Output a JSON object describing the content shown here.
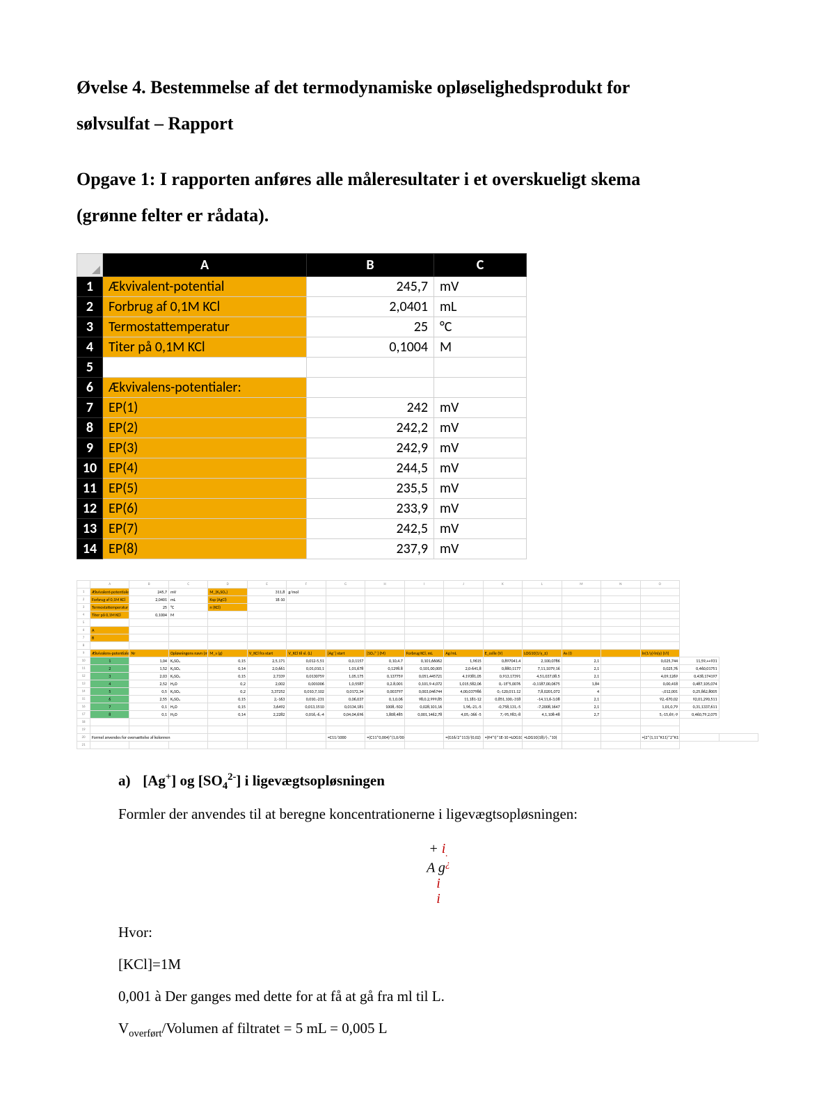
{
  "title_line1": "Øvelse 4. Bestemmelse af det termodynamiske opløselighedsprodukt for",
  "title_line2": "sølvsulfat – Rapport",
  "subtitle_line1": "Opgave 1: I rapporten anføres alle måleresultater i et overskueligt skema",
  "subtitle_line2": "(grønne felter er rådata).",
  "excel1": {
    "col_headers": [
      "A",
      "B",
      "C"
    ],
    "rows": [
      {
        "n": "1",
        "a": "Ækvivalent-potential",
        "b": "245,7",
        "c": "mV"
      },
      {
        "n": "2",
        "a": "Forbrug af 0,1M KCl",
        "b": "2,0401",
        "c": "mL"
      },
      {
        "n": "3",
        "a": "Termostattemperatur",
        "b": "25",
        "c": "°C"
      },
      {
        "n": "4",
        "a": "Titer på 0,1M KCl",
        "b": "0,1004",
        "c": "M"
      },
      {
        "n": "5",
        "a": "",
        "b": "",
        "c": ""
      },
      {
        "n": "6",
        "a": "Ækvivalens-potentialer:",
        "b": "",
        "c": ""
      },
      {
        "n": "7",
        "a": "EP(1)",
        "b": "242",
        "c": "mV"
      },
      {
        "n": "8",
        "a": "EP(2)",
        "b": "242,2",
        "c": "mV"
      },
      {
        "n": "9",
        "a": "EP(3)",
        "b": "242,9",
        "c": "mV"
      },
      {
        "n": "10",
        "a": "EP(4)",
        "b": "244,5",
        "c": "mV"
      },
      {
        "n": "11",
        "a": "EP(5)",
        "b": "235,5",
        "c": "mV"
      },
      {
        "n": "12",
        "a": "EP(6)",
        "b": "233,9",
        "c": "mV"
      },
      {
        "n": "13",
        "a": "EP(7)",
        "b": "242,5",
        "c": "mV"
      },
      {
        "n": "14",
        "a": "EP(8)",
        "b": "237,9",
        "c": "mV"
      }
    ],
    "colors": {
      "header_bg": "#000000",
      "header_fg": "#ffffff",
      "colA_bg": "#f2a900",
      "cell_border": "#cfcfcf"
    }
  },
  "excel2": {
    "col_letters": [
      "",
      "A",
      "B",
      "C",
      "D",
      "E",
      "F",
      "G",
      "H",
      "I",
      "J",
      "K",
      "L",
      "M",
      "N",
      "O"
    ],
    "top_block": [
      {
        "n": "1",
        "cells": [
          {
            "t": "Ækvivalent-potentiale",
            "cls": "orange txt"
          },
          {
            "t": "245,7",
            "cls": "num"
          },
          {
            "t": "mV",
            "cls": "txt"
          },
          {
            "t": "M_(K₂SO₄)",
            "cls": "orange txt"
          },
          {
            "t": "311,8",
            "cls": "num"
          },
          {
            "t": "g/mol",
            "cls": "txt"
          },
          {
            "t": "",
            "cls": ""
          },
          {
            "t": "",
            "cls": ""
          },
          {
            "t": "",
            "cls": ""
          },
          {
            "t": "",
            "cls": ""
          },
          {
            "t": "",
            "cls": ""
          },
          {
            "t": "",
            "cls": ""
          },
          {
            "t": "",
            "cls": ""
          },
          {
            "t": "",
            "cls": ""
          },
          {
            "t": "",
            "cls": ""
          }
        ]
      },
      {
        "n": "2",
        "cells": [
          {
            "t": "Forbrug af 0,1M KCl",
            "cls": "orange txt"
          },
          {
            "t": "2,0401",
            "cls": "num"
          },
          {
            "t": "mL",
            "cls": "txt"
          },
          {
            "t": "Ksp (AgCl)",
            "cls": "orange txt"
          },
          {
            "t": "1E-10",
            "cls": "num"
          },
          {
            "t": "",
            "cls": ""
          },
          {
            "t": "",
            "cls": ""
          },
          {
            "t": "",
            "cls": ""
          },
          {
            "t": "",
            "cls": ""
          },
          {
            "t": "",
            "cls": ""
          },
          {
            "t": "",
            "cls": ""
          },
          {
            "t": "",
            "cls": ""
          },
          {
            "t": "",
            "cls": ""
          },
          {
            "t": "",
            "cls": ""
          },
          {
            "t": "",
            "cls": ""
          }
        ]
      },
      {
        "n": "3",
        "cells": [
          {
            "t": "Termostattemperatur",
            "cls": "orange txt"
          },
          {
            "t": "25",
            "cls": "num"
          },
          {
            "t": "°C",
            "cls": "txt"
          },
          {
            "t": "n (KCl)",
            "cls": "orange txt"
          },
          {
            "t": "",
            "cls": ""
          },
          {
            "t": "",
            "cls": ""
          },
          {
            "t": "",
            "cls": ""
          },
          {
            "t": "",
            "cls": ""
          },
          {
            "t": "",
            "cls": ""
          },
          {
            "t": "",
            "cls": ""
          },
          {
            "t": "",
            "cls": ""
          },
          {
            "t": "",
            "cls": ""
          },
          {
            "t": "",
            "cls": ""
          },
          {
            "t": "",
            "cls": ""
          },
          {
            "t": "",
            "cls": ""
          }
        ]
      },
      {
        "n": "4",
        "cells": [
          {
            "t": "Titer på 0,1M KCl",
            "cls": "orange txt"
          },
          {
            "t": "0,1004",
            "cls": "num"
          },
          {
            "t": "M",
            "cls": "txt"
          },
          {
            "t": "",
            "cls": ""
          },
          {
            "t": "",
            "cls": ""
          },
          {
            "t": "",
            "cls": ""
          },
          {
            "t": "",
            "cls": ""
          },
          {
            "t": "",
            "cls": ""
          },
          {
            "t": "",
            "cls": ""
          },
          {
            "t": "",
            "cls": ""
          },
          {
            "t": "",
            "cls": ""
          },
          {
            "t": "",
            "cls": ""
          },
          {
            "t": "",
            "cls": ""
          },
          {
            "t": "",
            "cls": ""
          },
          {
            "t": "",
            "cls": ""
          }
        ]
      },
      {
        "n": "5",
        "cells": [
          {
            "t": "",
            "cls": ""
          },
          {
            "t": "",
            "cls": ""
          },
          {
            "t": "",
            "cls": ""
          },
          {
            "t": "",
            "cls": ""
          },
          {
            "t": "",
            "cls": ""
          },
          {
            "t": "",
            "cls": ""
          },
          {
            "t": "",
            "cls": ""
          },
          {
            "t": "",
            "cls": ""
          },
          {
            "t": "",
            "cls": ""
          },
          {
            "t": "",
            "cls": ""
          },
          {
            "t": "",
            "cls": ""
          },
          {
            "t": "",
            "cls": ""
          },
          {
            "t": "",
            "cls": ""
          },
          {
            "t": "",
            "cls": ""
          },
          {
            "t": "",
            "cls": ""
          }
        ]
      },
      {
        "n": "6",
        "cells": [
          {
            "t": "A",
            "cls": "orange txt"
          },
          {
            "t": "",
            "cls": ""
          },
          {
            "t": "",
            "cls": ""
          },
          {
            "t": "",
            "cls": ""
          },
          {
            "t": "",
            "cls": ""
          },
          {
            "t": "",
            "cls": ""
          },
          {
            "t": "",
            "cls": ""
          },
          {
            "t": "",
            "cls": ""
          },
          {
            "t": "",
            "cls": ""
          },
          {
            "t": "",
            "cls": ""
          },
          {
            "t": "",
            "cls": ""
          },
          {
            "t": "",
            "cls": ""
          },
          {
            "t": "",
            "cls": ""
          },
          {
            "t": "",
            "cls": ""
          },
          {
            "t": "",
            "cls": ""
          }
        ]
      },
      {
        "n": "7",
        "cells": [
          {
            "t": "B",
            "cls": "orange txt"
          },
          {
            "t": "",
            "cls": ""
          },
          {
            "t": "",
            "cls": ""
          },
          {
            "t": "",
            "cls": ""
          },
          {
            "t": "",
            "cls": ""
          },
          {
            "t": "",
            "cls": ""
          },
          {
            "t": "",
            "cls": ""
          },
          {
            "t": "",
            "cls": ""
          },
          {
            "t": "",
            "cls": ""
          },
          {
            "t": "",
            "cls": ""
          },
          {
            "t": "",
            "cls": ""
          },
          {
            "t": "",
            "cls": ""
          },
          {
            "t": "",
            "cls": ""
          },
          {
            "t": "",
            "cls": ""
          },
          {
            "t": "",
            "cls": ""
          }
        ]
      },
      {
        "n": "8",
        "cells": [
          {
            "t": "",
            "cls": ""
          },
          {
            "t": "",
            "cls": ""
          },
          {
            "t": "",
            "cls": ""
          },
          {
            "t": "",
            "cls": ""
          },
          {
            "t": "",
            "cls": ""
          },
          {
            "t": "",
            "cls": ""
          },
          {
            "t": "",
            "cls": ""
          },
          {
            "t": "",
            "cls": ""
          },
          {
            "t": "",
            "cls": ""
          },
          {
            "t": "",
            "cls": ""
          },
          {
            "t": "",
            "cls": ""
          },
          {
            "t": "",
            "cls": ""
          },
          {
            "t": "",
            "cls": ""
          },
          {
            "t": "",
            "cls": ""
          },
          {
            "t": "",
            "cls": ""
          }
        ]
      }
    ],
    "header_row": {
      "n": "9",
      "labels": [
        "Ækvivalens-potentialer (mV)",
        "Nr",
        "Opløsningens navn (mL = M_s/l)",
        "M_s (g)",
        "V_KCl fra start",
        "V_KCl til sl. (L)",
        "[Ag⁺] start",
        "[SO₄²⁻] (M)",
        "Forbrug KCl, mL",
        "Ag/mL",
        "E_celle (V)",
        "LOG10(1/γ_±)",
        "As (I)",
        "",
        "ln(1/γ)·ln(γ) (I/I)"
      ]
    },
    "data_rows": [
      {
        "n": "10",
        "g": "1",
        "cells": [
          "1,04",
          "K₂SO₄",
          "0,15",
          "2,5,171",
          "0,012-5,51",
          "0,0,1157",
          "0,10,4.7",
          "0,101,66062",
          "1,9615",
          "0,897041.4",
          "2,100,0786",
          "2,1",
          "",
          "0,025,744",
          "11,59,++931"
        ]
      },
      {
        "n": "11",
        "g": "2",
        "cells": [
          "1,52",
          "K₂SO₄",
          "0,14",
          "2,0,661",
          "0,01,010,1",
          "1,01,678",
          "0,1298.8",
          "0,101,00,005",
          "2,0-641,8",
          "0,880,1177",
          "7,11,1079,16",
          "2,1",
          "",
          "0,025,76",
          "0,460,01751"
        ]
      },
      {
        "n": "12",
        "g": "3",
        "cells": [
          "2,03",
          "K₂SO₄",
          "0,15",
          "2,7339",
          "0,0130759",
          "1,05,175",
          "0,137759",
          "0,051,445721",
          "4,19381,05",
          "0,913,17391",
          "4,51,037,08.5",
          "2,1",
          "",
          "4,09,1269",
          "0,438,174197"
        ]
      },
      {
        "n": "13",
        "g": "4",
        "cells": [
          "2,52",
          "H₂O",
          "0,2",
          "2,002",
          "0,001006",
          "1,0,5587",
          "0,2.8,001",
          "0,101,9-4,072",
          "1,015,582,06",
          "0,-15°5,0076",
          "-0,1187,00,0675",
          "1,84",
          "",
          "0,00,418",
          "0,487,105,074"
        ]
      },
      {
        "n": "14",
        "g": "5",
        "cells": [
          "0,5",
          "K₂SO₄",
          "0,2",
          "3,37252",
          "0,010,7,102",
          "0,0172,34",
          "0,003797",
          "0,003,046744",
          "4,00,037986",
          "0,-120,011.12",
          "7,8,0201,072",
          "4",
          "",
          "-,012,001",
          "0,25,862,8005"
        ]
      },
      {
        "n": "15",
        "g": "6",
        "cells": [
          "2,55",
          "K₂SO₄",
          "0,15",
          "2,-163",
          "0,010,-231",
          "0,06,037",
          "0,1,0.06",
          "98,0.2,999,85",
          "11,181-12",
          "0,851,100,-318",
          "-14,11,6-3,08",
          "2,1",
          "",
          "92,-670,02",
          "92,01,290,511"
        ]
      },
      {
        "n": "16",
        "g": "7",
        "cells": [
          "0,1",
          "H₂O",
          "0,15",
          "3,6492",
          "0,013,1510",
          "0,0134,181",
          "1008,-502",
          "0,028,101,16",
          "1,96,-21,-5",
          "-0,758,131,-5",
          "-7,2008,1647",
          "2,1",
          "",
          "1,01,0,79",
          "0,31,1337,611"
        ]
      },
      {
        "n": "17",
        "g": "8",
        "cells": [
          "0,1",
          "H₂O",
          "0,14",
          "2,2282",
          "0,016,-6,-4",
          "0,04,04,696",
          "1,808,485",
          "0,001,1462,78",
          "4,05,-366 -5",
          "7,-95,983,-8",
          "4,1,108-48",
          "2,7",
          "",
          "5,-15,69,-9",
          "0,460,79,2,075"
        ]
      }
    ],
    "formula_row": {
      "n": "20",
      "label": "Formel anvendes for oversættelse af kolonnen",
      "formulas": [
        "",
        "",
        "",
        "=C11/1000",
        "=(C11*0,004)*(1,0/008) =I(16/P05)",
        "",
        "=(G16/2*113)/(0,02)",
        "=(F4*I)*1E-10 =LOG10(I,16)",
        "=LOG10(18)/(-,*10)",
        "",
        "",
        "=(2*(1,11*K11)*2*K11)+(18,8*2)*(10,2*-2,1) +SQRT(D008,16)/(1,++002.300,-8,0,1))"
      ]
    }
  },
  "section_a": {
    "lead_marker": "a)",
    "lead_text": "[Ag⁺] og [SO₄²⁻] i ligevægtsopløsningen",
    "p1": "Formler der anvendes til at beregne koncentrationerne i ligevægtsopløsningen:",
    "formula_lines": [
      "+ i",
      "A g",
      "i",
      "i"
    ],
    "red_marks_index": [
      0,
      1,
      2,
      3
    ],
    "hvor": "Hvor:",
    "kcl": "[KCl]=1M",
    "p2": "0,001 à Der ganges med dette for at få at gå fra ml til L.",
    "p3_a": "V",
    "p3_sub": "overført",
    "p3_b": "/Volumen af filtratet = 5 mL = 0,005 L"
  }
}
